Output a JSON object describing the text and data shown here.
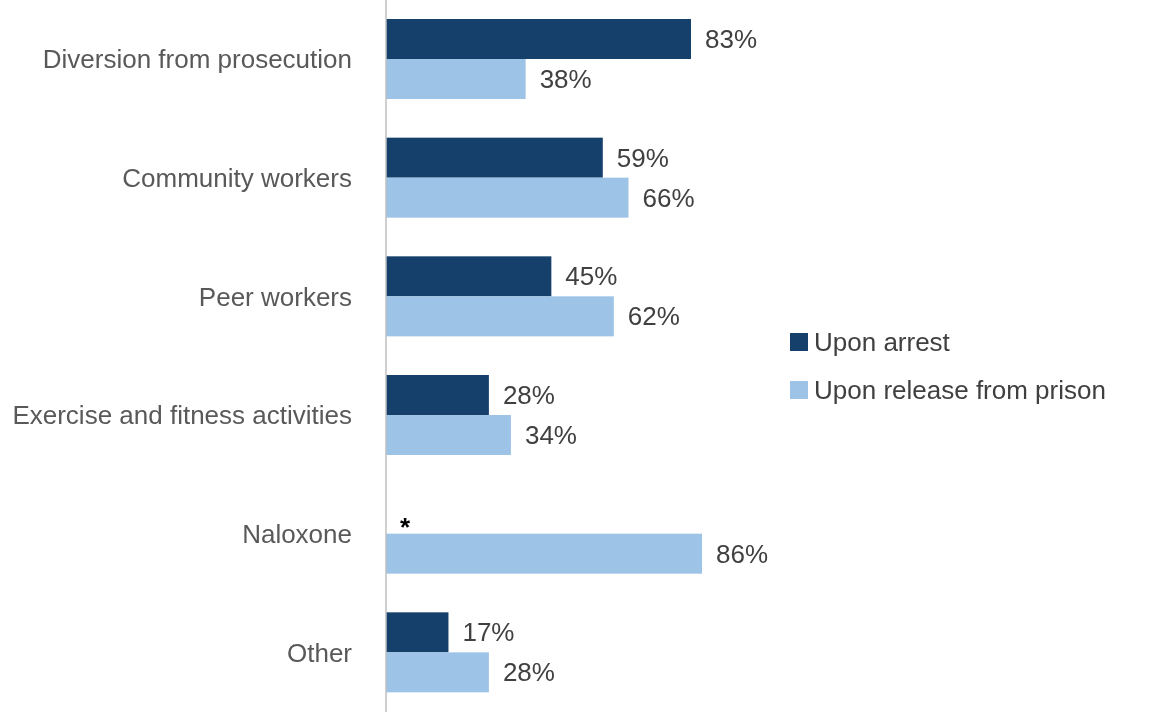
{
  "chart_data": {
    "type": "bar",
    "orientation": "horizontal",
    "categories": [
      "Diversion from prosecution",
      "Community workers",
      "Peer workers",
      "Exercise and fitness activities",
      "Naloxone",
      "Other"
    ],
    "series": [
      {
        "name": "Upon arrest",
        "color": "#14406b",
        "values": [
          83,
          59,
          45,
          28,
          null,
          17
        ],
        "value_labels": [
          "83%",
          "59%",
          "45%",
          "28%",
          null,
          "17%"
        ]
      },
      {
        "name": "Upon release from prison",
        "color": "#9dc3e6",
        "values": [
          38,
          66,
          62,
          34,
          86,
          28
        ],
        "value_labels": [
          "38%",
          "66%",
          "62%",
          "34%",
          "86%",
          "28%"
        ]
      }
    ],
    "annotations": [
      "*"
    ],
    "legend": "right",
    "grid": false
  }
}
